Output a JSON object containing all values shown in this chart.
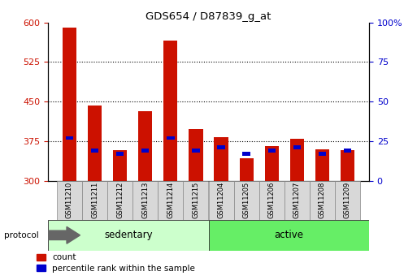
{
  "title": "GDS654 / D87839_g_at",
  "samples": [
    "GSM11210",
    "GSM11211",
    "GSM11212",
    "GSM11213",
    "GSM11214",
    "GSM11215",
    "GSM11204",
    "GSM11205",
    "GSM11206",
    "GSM11207",
    "GSM11208",
    "GSM11209"
  ],
  "count_values": [
    590,
    443,
    358,
    432,
    565,
    398,
    383,
    342,
    365,
    380,
    360,
    358
  ],
  "percentile_values": [
    27,
    19,
    17,
    19,
    27,
    19,
    21,
    17,
    19,
    21,
    17,
    19
  ],
  "groups": [
    {
      "label": "sedentary",
      "start": 0,
      "end": 6,
      "color": "#ccffcc"
    },
    {
      "label": "active",
      "start": 6,
      "end": 12,
      "color": "#66ee66"
    }
  ],
  "protocol_label": "protocol",
  "bar_width": 0.55,
  "count_color": "#cc1100",
  "percentile_color": "#0000cc",
  "ylim_left": [
    300,
    600
  ],
  "ylim_right": [
    0,
    100
  ],
  "yticks_left": [
    300,
    375,
    450,
    525,
    600
  ],
  "yticks_right": [
    0,
    25,
    50,
    75,
    100
  ],
  "grid_ticks": [
    375,
    450,
    525
  ],
  "legend_count": "count",
  "legend_percentile": "percentile rank within the sample",
  "tick_color_left": "#cc1100",
  "tick_color_right": "#0000cc"
}
